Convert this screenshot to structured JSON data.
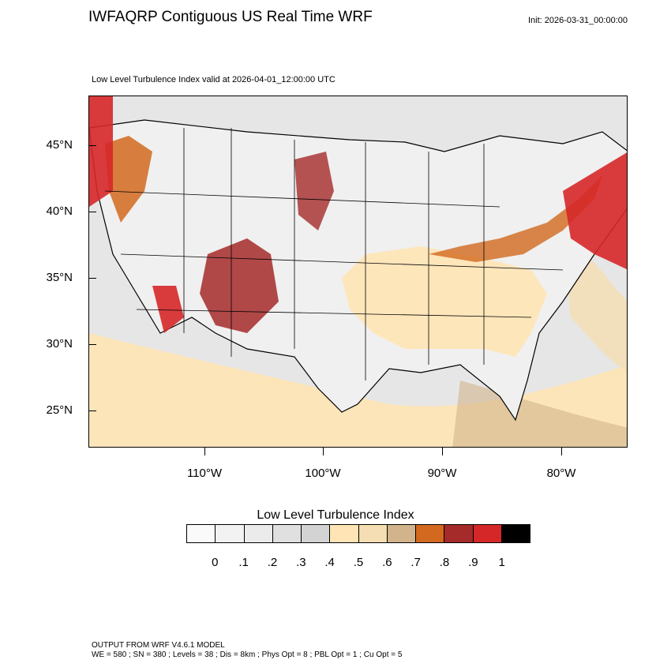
{
  "title": "IWFAQRP Contiguous US Real Time WRF",
  "init": "Init: 2026-03-31_00:00:00",
  "subtitle": "Low Level Turbulence Index valid at 2026-04-01_12:00:00 UTC",
  "map": {
    "lat_labels": [
      "45°N",
      "40°N",
      "35°N",
      "30°N",
      "25°N"
    ],
    "lon_labels": [
      "110°W",
      "100°W",
      "90°W",
      "80°W"
    ]
  },
  "colorbar": {
    "title": "Low Level Turbulence Index",
    "colors": [
      "#fafafa",
      "#f2f2f2",
      "#ebebeb",
      "#e0e0e0",
      "#d3d3d3",
      "#ffe4b5",
      "#f5deb3",
      "#d2b48c",
      "#d2691e",
      "#a52a2a",
      "#d62728",
      "#000000"
    ],
    "tick_labels": [
      "0",
      ".1",
      ".2",
      ".3",
      ".4",
      ".5",
      ".6",
      ".7",
      ".8",
      ".9",
      "1"
    ]
  },
  "footer": {
    "line1": "OUTPUT FROM WRF V4.6.1 MODEL",
    "line2": "WE = 580 ; SN = 380 ; Levels = 38 ; Dis = 8km ; Phys Opt = 8 ; PBL Opt = 1 ; Cu Opt = 5"
  }
}
